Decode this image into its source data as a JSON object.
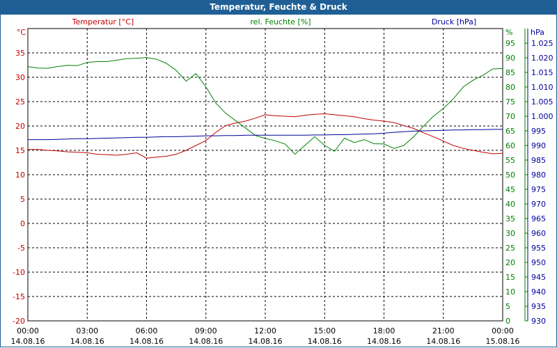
{
  "window": {
    "title": "Temperatur, Feuchte & Druck"
  },
  "colors": {
    "temperature": "#c00000",
    "humidity": "#008000",
    "pressure": "#000099",
    "titlebar": "#1f5f95"
  },
  "chart_data": {
    "type": "line",
    "title": "Temperatur, Feuchte & Druck",
    "grid": true,
    "x_ticks": [
      {
        "time": "00:00",
        "date": "14.08.16"
      },
      {
        "time": "03:00",
        "date": "14.08.16"
      },
      {
        "time": "06:00",
        "date": "14.08.16"
      },
      {
        "time": "09:00",
        "date": "14.08.16"
      },
      {
        "time": "12:00",
        "date": "14.08.16"
      },
      {
        "time": "15:00",
        "date": "14.08.16"
      },
      {
        "time": "18:00",
        "date": "14.08.16"
      },
      {
        "time": "21:00",
        "date": "14.08.16"
      },
      {
        "time": "00:00",
        "date": "15.08.16"
      }
    ],
    "x_hours": [
      0,
      0.5,
      1,
      1.5,
      2,
      2.5,
      3,
      3.5,
      4,
      4.5,
      5,
      5.5,
      6,
      6.5,
      7,
      7.5,
      8,
      8.5,
      9,
      9.5,
      10,
      10.5,
      11,
      11.5,
      12,
      12.5,
      13,
      13.5,
      14,
      14.5,
      15,
      15.5,
      16,
      16.5,
      17,
      17.5,
      18,
      18.5,
      19,
      19.5,
      20,
      20.5,
      21,
      21.5,
      22,
      22.5,
      23,
      23.5,
      24
    ],
    "axes": {
      "temperature": {
        "label": "Temperatur [°C]",
        "unit": "°C",
        "ylim": [
          -20,
          40
        ],
        "ticks": [
          -20,
          -15,
          -10,
          -5,
          0,
          5,
          10,
          15,
          20,
          25,
          30,
          35
        ]
      },
      "humidity": {
        "label": "rel. Feuchte [%]",
        "unit": "%",
        "ylim": [
          0,
          100
        ],
        "ticks": [
          0,
          5,
          10,
          15,
          20,
          25,
          30,
          35,
          40,
          45,
          50,
          55,
          60,
          65,
          70,
          75,
          80,
          85,
          90,
          95
        ]
      },
      "pressure": {
        "label": "Druck [hPa]",
        "unit": "hPa",
        "ylim": [
          930,
          1030
        ],
        "ticks": [
          "930",
          "935",
          "940",
          "945",
          "950",
          "955",
          "960",
          "965",
          "970",
          "975",
          "980",
          "985",
          "990",
          "995",
          "1.000",
          "1.005",
          "1.010",
          "1.015",
          "1.020",
          "1.025"
        ]
      }
    },
    "series": [
      {
        "name": "Temperatur [°C]",
        "axis": "temperature",
        "values": [
          15.2,
          15.2,
          15.0,
          14.9,
          14.7,
          14.6,
          14.5,
          14.2,
          14.1,
          14.0,
          14.2,
          14.5,
          13.4,
          13.6,
          13.8,
          14.2,
          15.0,
          16.0,
          17.0,
          18.7,
          20.1,
          20.6,
          21.0,
          21.6,
          22.3,
          22.1,
          22.0,
          21.9,
          22.2,
          22.4,
          22.5,
          22.3,
          22.1,
          21.9,
          21.5,
          21.2,
          21.0,
          20.7,
          20.1,
          19.5,
          18.6,
          17.8,
          16.9,
          16.0,
          15.4,
          15.0,
          14.6,
          14.3,
          14.4
        ]
      },
      {
        "name": "rel. Feuchte [%]",
        "axis": "humidity",
        "values": [
          87.0,
          86.5,
          86.4,
          87.0,
          87.4,
          87.3,
          88.4,
          88.7,
          88.7,
          89.2,
          89.7,
          89.8,
          90.1,
          89.5,
          88.1,
          85.7,
          82.0,
          84.6,
          80.0,
          74.5,
          71.0,
          68.5,
          66.0,
          63.4,
          62.4,
          61.6,
          60.5,
          57.0,
          60.0,
          63.0,
          60.0,
          58.0,
          62.5,
          61.0,
          62.0,
          60.6,
          60.5,
          59.0,
          60.0,
          63.0,
          66.6,
          70.0,
          72.7,
          75.9,
          80.0,
          82.3,
          84.0,
          86.2,
          86.3
        ]
      },
      {
        "name": "Druck [hPa]",
        "axis": "pressure",
        "values": [
          992.0,
          992.0,
          992.0,
          992.1,
          992.2,
          992.3,
          992.3,
          992.4,
          992.5,
          992.6,
          992.7,
          992.8,
          992.8,
          992.9,
          993.0,
          993.0,
          993.1,
          993.2,
          993.3,
          993.3,
          993.4,
          993.4,
          993.5,
          993.5,
          993.5,
          993.5,
          993.5,
          993.5,
          993.5,
          993.6,
          993.6,
          993.7,
          993.7,
          993.8,
          993.9,
          994.0,
          994.2,
          994.5,
          994.7,
          994.9,
          995.0,
          995.1,
          995.2,
          995.3,
          995.3,
          995.4,
          995.4,
          995.5,
          995.5
        ]
      }
    ]
  }
}
